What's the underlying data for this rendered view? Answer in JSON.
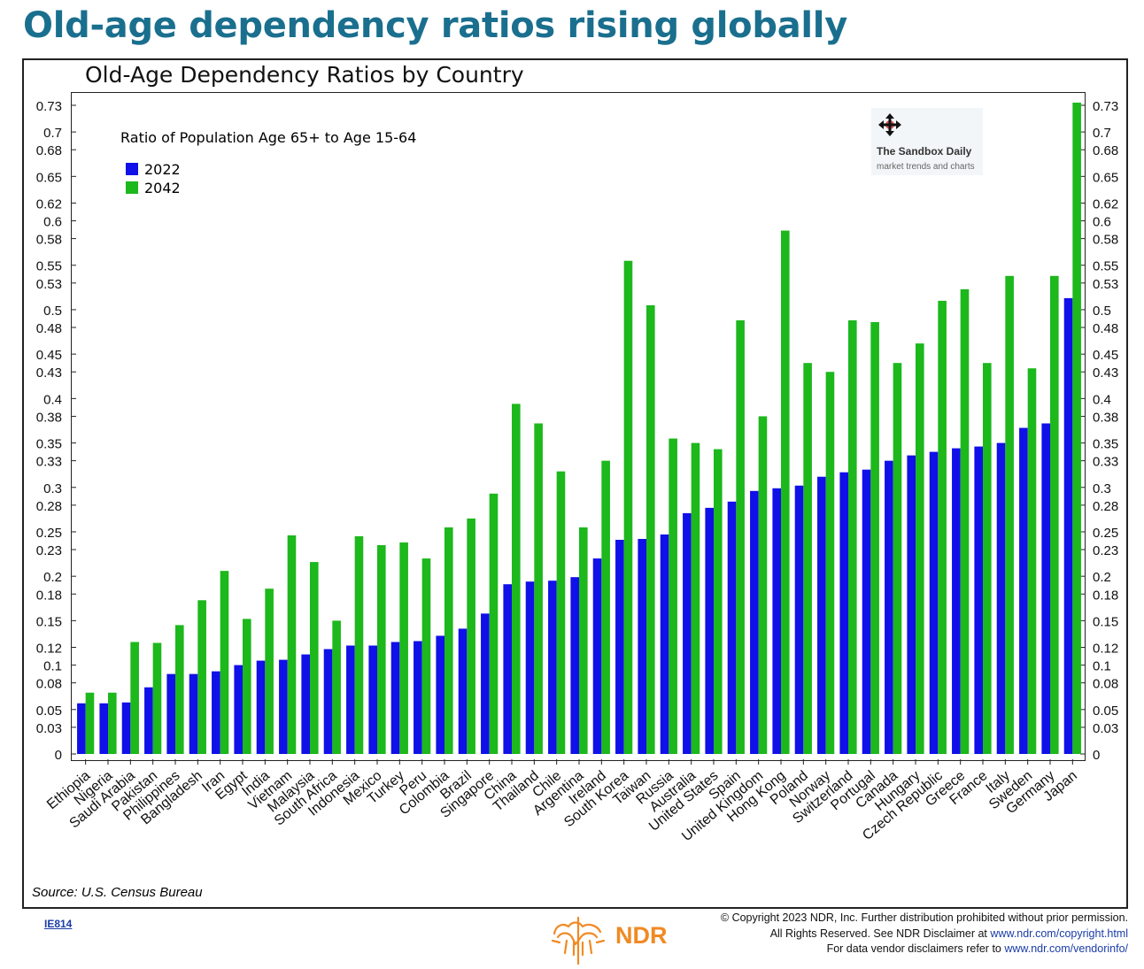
{
  "headline": "Old-age dependency ratios rising globally",
  "chart_data": {
    "type": "bar",
    "title": "Old-Age Dependency Ratios by Country",
    "subtitle": "Ratio of Population Age 65+ to Age 15-64",
    "categories": [
      "Ethiopia",
      "Nigeria",
      "Saudi Arabia",
      "Pakistan",
      "Philippines",
      "Bangladesh",
      "Iran",
      "Egypt",
      "India",
      "Vietnam",
      "Malaysia",
      "South Africa",
      "Indonesia",
      "Mexico",
      "Turkey",
      "Peru",
      "Colombia",
      "Brazil",
      "Singapore",
      "China",
      "Thailand",
      "Chile",
      "Argentina",
      "Ireland",
      "South Korea",
      "Taiwan",
      "Russia",
      "Australia",
      "United States",
      "Spain",
      "United Kingdom",
      "Hong Kong",
      "Poland",
      "Norway",
      "Switzerland",
      "Portugal",
      "Canada",
      "Hungary",
      "Czech Republic",
      "Greece",
      "France",
      "Italy",
      "Sweden",
      "Germany",
      "Japan"
    ],
    "series": [
      {
        "name": "2022",
        "color": "#1010e8",
        "values": [
          0.057,
          0.057,
          0.058,
          0.075,
          0.09,
          0.09,
          0.093,
          0.1,
          0.105,
          0.106,
          0.112,
          0.118,
          0.122,
          0.122,
          0.126,
          0.127,
          0.133,
          0.141,
          0.158,
          0.191,
          0.194,
          0.195,
          0.199,
          0.22,
          0.241,
          0.242,
          0.247,
          0.271,
          0.277,
          0.284,
          0.296,
          0.299,
          0.302,
          0.312,
          0.317,
          0.32,
          0.33,
          0.336,
          0.34,
          0.344,
          0.346,
          0.35,
          0.367,
          0.372,
          0.513
        ]
      },
      {
        "name": "2042",
        "color": "#1cb81c",
        "values": [
          0.069,
          0.069,
          0.126,
          0.125,
          0.145,
          0.173,
          0.206,
          0.152,
          0.186,
          0.246,
          0.216,
          0.15,
          0.245,
          0.235,
          0.238,
          0.22,
          0.255,
          0.265,
          0.293,
          0.394,
          0.372,
          0.318,
          0.255,
          0.33,
          0.555,
          0.505,
          0.355,
          0.35,
          0.343,
          0.488,
          0.38,
          0.589,
          0.44,
          0.43,
          0.488,
          0.486,
          0.44,
          0.462,
          0.51,
          0.523,
          0.44,
          0.538,
          0.434,
          0.538,
          0.733
        ]
      }
    ],
    "yticks": [
      "0",
      "0.03",
      "0.05",
      "0.08",
      "0.1",
      "0.12",
      "0.15",
      "0.18",
      "0.2",
      "0.23",
      "0.25",
      "0.28",
      "0.3",
      "0.33",
      "0.35",
      "0.38",
      "0.4",
      "0.43",
      "0.45",
      "0.48",
      "0.5",
      "0.53",
      "0.55",
      "0.58",
      "0.6",
      "0.62",
      "0.65",
      "0.68",
      "0.7",
      "0.73"
    ],
    "ylim": [
      0,
      0.73
    ],
    "legend_position": "top-left",
    "grid": false,
    "source": "Source: U.S. Census Bureau"
  },
  "watermark": {
    "title": "The Sandbox Daily",
    "subtitle": "market trends and charts",
    "icon": "move-arrows-icon"
  },
  "footer": {
    "code": "IE814",
    "brand": "NDR",
    "line1": "© Copyright 2023 NDR, Inc. Further distribution prohibited without prior permission.",
    "line2_text": "All Rights Reserved. See NDR Disclaimer at ",
    "line2_link": "www.ndr.com/copyright.html",
    "line3_text": "For data vendor disclaimers refer to ",
    "line3_link": "www.ndr.com/vendorinfo/"
  }
}
